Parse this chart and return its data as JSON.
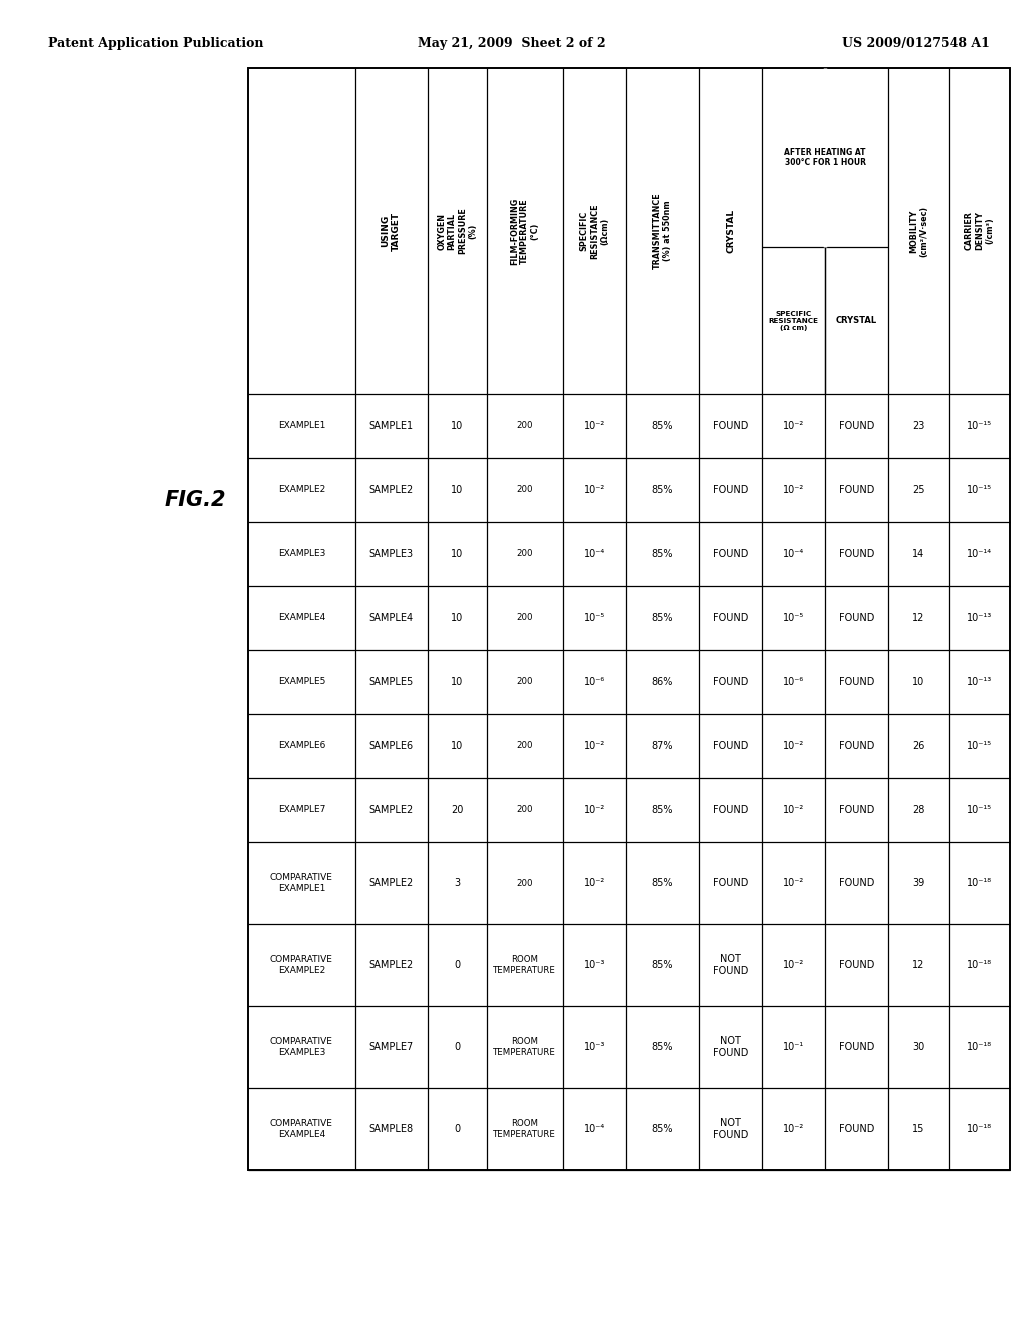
{
  "title_left": "Patent Application Publication",
  "title_center": "May 21, 2009  Sheet 2 of 2",
  "title_right": "US 2009/0127548 A1",
  "fig_label": "FIG.2",
  "col_headers": [
    "",
    "USING\nTARGET",
    "OXYGEN\nPARTIAL\nPRESSURE\n(%)",
    "FILM-FORMING\nTEMPERATURE\n(°C)",
    "SPECIFIC\nRESISTANCE\n(Ωcm)",
    "TRANSMITTANCE\n(%) at 550nm",
    "CRYSTAL",
    "AFTER HEATING AT\n300°C FOR 1 HOUR",
    "SPECIFIC\nRESISTANCE\n(Ω cm)",
    "CRYSTAL",
    "MOBILITY\n(cm²/V·sec)",
    "CARRIER\nDENSITY\n(/cm³)"
  ],
  "rows": [
    [
      "EXAMPLE1",
      "SAMPLE1",
      "10",
      "200",
      "10⁻²",
      "85%",
      "FOUND",
      "10⁻²",
      "FOUND",
      "23",
      "10⁻¹⁵"
    ],
    [
      "EXAMPLE2",
      "SAMPLE2",
      "10",
      "200",
      "10⁻²",
      "85%",
      "FOUND",
      "10⁻²",
      "FOUND",
      "25",
      "10⁻¹⁵"
    ],
    [
      "EXAMPLE3",
      "SAMPLE3",
      "10",
      "200",
      "10⁻⁴",
      "85%",
      "FOUND",
      "10⁻⁴",
      "FOUND",
      "14",
      "10⁻¹⁴"
    ],
    [
      "EXAMPLE4",
      "SAMPLE4",
      "10",
      "200",
      "10⁻⁵",
      "85%",
      "FOUND",
      "10⁻⁵",
      "FOUND",
      "12",
      "10⁻¹³"
    ],
    [
      "EXAMPLE5",
      "SAMPLE5",
      "10",
      "200",
      "10⁻⁶",
      "86%",
      "FOUND",
      "10⁻⁶",
      "FOUND",
      "10",
      "10⁻¹³"
    ],
    [
      "EXAMPLE6",
      "SAMPLE6",
      "10",
      "200",
      "10⁻²",
      "87%",
      "FOUND",
      "10⁻²",
      "FOUND",
      "26",
      "10⁻¹⁵"
    ],
    [
      "EXAMPLE7",
      "SAMPLE2",
      "20",
      "200",
      "10⁻²",
      "85%",
      "FOUND",
      "10⁻²",
      "FOUND",
      "28",
      "10⁻¹⁵"
    ],
    [
      "COMPARATIVE\nEXAMPLE1",
      "SAMPLE2",
      "3",
      "200",
      "10⁻²",
      "85%",
      "FOUND",
      "10⁻²",
      "FOUND",
      "39",
      "10⁻¹⁸"
    ],
    [
      "COMPARATIVE\nEXAMPLE2",
      "SAMPLE2",
      "0",
      "ROOM\nTEMPERATURE",
      "10⁻³",
      "85%",
      "NOT\nFOUND",
      "10⁻²",
      "FOUND",
      "12",
      "10⁻¹⁸"
    ],
    [
      "COMPARATIVE\nEXAMPLE3",
      "SAMPLE7",
      "0",
      "ROOM\nTEMPERATURE",
      "10⁻³",
      "85%",
      "NOT\nFOUND",
      "10⁻¹",
      "FOUND",
      "30",
      "10⁻¹⁸"
    ],
    [
      "COMPARATIVE\nEXAMPLE4",
      "SAMPLE8",
      "0",
      "ROOM\nTEMPERATURE",
      "10⁻⁴",
      "85%",
      "NOT\nFOUND",
      "10⁻²",
      "FOUND",
      "15",
      "10⁻¹⁸"
    ]
  ],
  "background_color": "#ffffff"
}
